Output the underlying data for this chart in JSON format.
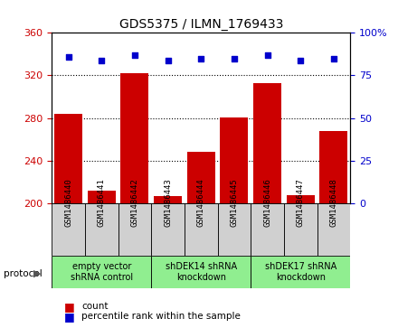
{
  "title": "GDS5375 / ILMN_1769433",
  "samples": [
    "GSM1486440",
    "GSM1486441",
    "GSM1486442",
    "GSM1486443",
    "GSM1486444",
    "GSM1486445",
    "GSM1486446",
    "GSM1486447",
    "GSM1486448"
  ],
  "counts": [
    284,
    212,
    322,
    207,
    248,
    281,
    313,
    208,
    268
  ],
  "percentile_ranks": [
    86,
    84,
    87,
    84,
    85,
    85,
    87,
    84,
    85
  ],
  "ylim_left": [
    200,
    360
  ],
  "ylim_right": [
    0,
    100
  ],
  "yticks_left": [
    200,
    240,
    280,
    320,
    360
  ],
  "yticks_right": [
    0,
    25,
    50,
    75,
    100
  ],
  "ytick_labels_right": [
    "0",
    "25",
    "50",
    "75",
    "100%"
  ],
  "bar_color": "#cc0000",
  "dot_color": "#0000cc",
  "grid_color": "#000000",
  "sample_box_color": "#d0d0d0",
  "groups": [
    {
      "label": "empty vector\nshRNA control",
      "start": 0,
      "end": 3
    },
    {
      "label": "shDEK14 shRNA\nknockdown",
      "start": 3,
      "end": 6
    },
    {
      "label": "shDEK17 shRNA\nknockdown",
      "start": 6,
      "end": 9
    }
  ],
  "group_color": "#90ee90",
  "legend_count_label": "count",
  "legend_percentile_label": "percentile rank within the sample",
  "left_tick_color": "#cc0000",
  "right_tick_color": "#0000cc",
  "bar_width": 0.85,
  "title_fontsize": 10,
  "tick_fontsize": 8,
  "sample_fontsize": 6.5,
  "group_fontsize": 7,
  "legend_fontsize": 7.5
}
